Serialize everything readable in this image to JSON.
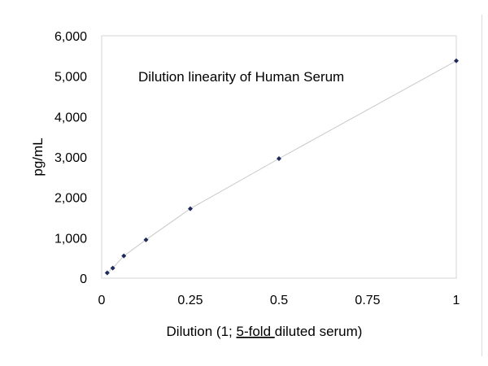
{
  "chart_data": {
    "type": "scatter",
    "title": "",
    "annotation": "Dilution linearity of Human Serum",
    "xlabel": {
      "prefix": "Dilution (1; ",
      "underlined": "5-fold ",
      "suffix": "diluted serum)"
    },
    "ylabel": "pg/mL",
    "xlim": [
      0,
      1
    ],
    "ylim": [
      0,
      6000
    ],
    "x_ticks": [
      {
        "value": 0,
        "label": "0"
      },
      {
        "value": 0.25,
        "label": "0.25"
      },
      {
        "value": 0.5,
        "label": "0.5"
      },
      {
        "value": 0.75,
        "label": "0.75"
      },
      {
        "value": 1,
        "label": "1"
      }
    ],
    "y_ticks": [
      {
        "value": 0,
        "label": "0"
      },
      {
        "value": 1000,
        "label": "1,000"
      },
      {
        "value": 2000,
        "label": "2,000"
      },
      {
        "value": 3000,
        "label": "3,000"
      },
      {
        "value": 4000,
        "label": "4,000"
      },
      {
        "value": 5000,
        "label": "5,000"
      },
      {
        "value": 6000,
        "label": "6,000"
      }
    ],
    "grid": false,
    "series": [
      {
        "x": [
          0.0156,
          0.03125,
          0.0625,
          0.125,
          0.25,
          0.5,
          1.0
        ],
        "y": [
          130,
          250,
          550,
          950,
          1720,
          2960,
          5380
        ]
      }
    ],
    "colors": {
      "marker": "#1f2a5c",
      "line": "#c8c8c8",
      "plot_border": "#d4d4d4"
    }
  }
}
